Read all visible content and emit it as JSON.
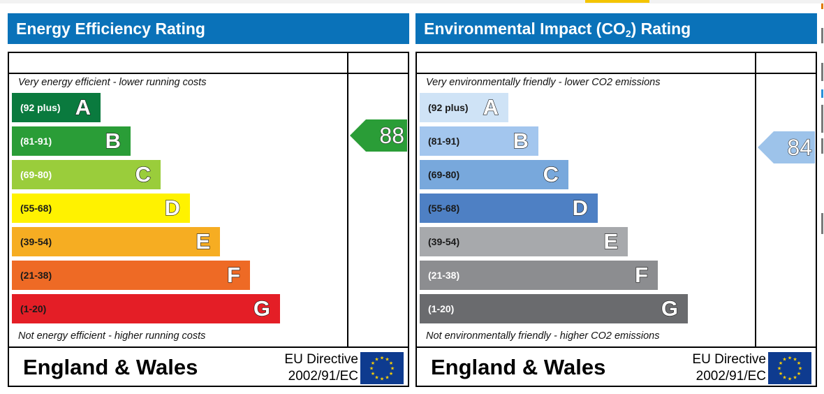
{
  "charts": [
    {
      "id": "energy",
      "title": "Energy Efficiency Rating",
      "note_top": "Very energy efficient - lower running costs",
      "note_bottom": "Not energy efficient - higher running costs",
      "region": "England & Wales",
      "directive_line1": "EU Directive",
      "directive_line2": "2002/91/EC",
      "current_rating": 88,
      "arrow_color": "#2a9d37",
      "bands": [
        {
          "range": "(92 plus)",
          "letter": "A",
          "color": "#0a7a3e",
          "text": "light"
        },
        {
          "range": "(81-91)",
          "letter": "B",
          "color": "#2a9d37",
          "text": "light"
        },
        {
          "range": "(69-80)",
          "letter": "C",
          "color": "#9acd3b",
          "text": "light"
        },
        {
          "range": "(55-68)",
          "letter": "D",
          "color": "#fff200",
          "text": "dark"
        },
        {
          "range": "(39-54)",
          "letter": "E",
          "color": "#f6ad22",
          "text": "dark"
        },
        {
          "range": "(21-38)",
          "letter": "F",
          "color": "#ee6a25",
          "text": "dark"
        },
        {
          "range": "(1-20)",
          "letter": "G",
          "color": "#e41e26",
          "text": "dark"
        }
      ]
    },
    {
      "id": "environment",
      "title": "Environmental Impact (CO",
      "title_sub": "2",
      "title_suffix": ") Rating",
      "note_top": "Very environmentally friendly - lower CO2 emissions",
      "note_bottom": "Not environmentally friendly - higher CO2 emissions",
      "region": "England & Wales",
      "directive_line1": "EU Directive",
      "directive_line2": "2002/91/EC",
      "current_rating": 84,
      "arrow_color": "#9dc3ea",
      "bands": [
        {
          "range": "(92 plus)",
          "letter": "A",
          "color": "#cfe3f6",
          "text": "dark"
        },
        {
          "range": "(81-91)",
          "letter": "B",
          "color": "#a3c6ee",
          "text": "dark"
        },
        {
          "range": "(69-80)",
          "letter": "C",
          "color": "#78a8dc",
          "text": "dark"
        },
        {
          "range": "(55-68)",
          "letter": "D",
          "color": "#4e80c4",
          "text": "dark"
        },
        {
          "range": "(39-54)",
          "letter": "E",
          "color": "#a7a9ac",
          "text": "dark"
        },
        {
          "range": "(21-38)",
          "letter": "F",
          "color": "#8c8d90",
          "text": "light"
        },
        {
          "range": "(1-20)",
          "letter": "G",
          "color": "#6a6b6e",
          "text": "light"
        }
      ]
    }
  ],
  "chart_data": [
    {
      "type": "table",
      "title": "Energy Efficiency Rating",
      "categories": [
        "A",
        "B",
        "C",
        "D",
        "E",
        "F",
        "G"
      ],
      "ranges": [
        "(92 plus)",
        "(81-91)",
        "(69-80)",
        "(55-68)",
        "(39-54)",
        "(21-38)",
        "(1-20)"
      ],
      "current": 88
    },
    {
      "type": "table",
      "title": "Environmental Impact (CO2) Rating",
      "categories": [
        "A",
        "B",
        "C",
        "D",
        "E",
        "F",
        "G"
      ],
      "ranges": [
        "(92 plus)",
        "(81-91)",
        "(69-80)",
        "(55-68)",
        "(39-54)",
        "(21-38)",
        "(1-20)"
      ],
      "current": 84
    }
  ]
}
